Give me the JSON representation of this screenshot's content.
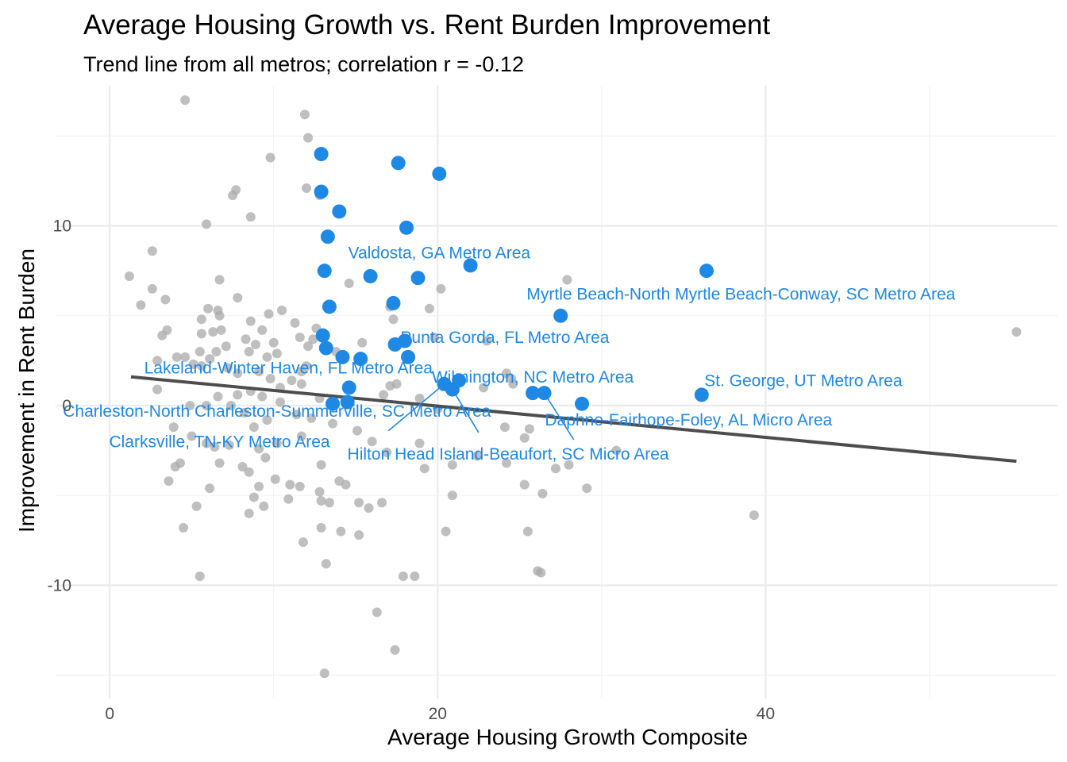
{
  "chart_data": {
    "type": "scatter",
    "title": "Average Housing Growth vs. Rent Burden Improvement",
    "subtitle": "Trend line from all metros; correlation r = -0.12",
    "xlabel": "Average Housing Growth Composite",
    "ylabel": "Improvement in Rent Burden",
    "xlim": [
      -3.3,
      57.8
    ],
    "ylim": [
      -16.3,
      17.8
    ],
    "x_ticks": [
      0,
      20,
      40
    ],
    "y_ticks": [
      -10,
      0,
      10
    ],
    "x_tick_labels": [
      "0",
      "20",
      "40"
    ],
    "y_tick_labels": [
      "-10",
      "0",
      "10"
    ],
    "grid": true,
    "colors": {
      "background_points": "#a9a9a9",
      "highlight_points": "#1e88e5",
      "trend_line": "#4d4d4d"
    },
    "trend_line": {
      "x": [
        1.3,
        55.3
      ],
      "y": [
        1.6,
        -3.1
      ]
    },
    "highlighted": [
      {
        "x": 12.9,
        "y": 14.0
      },
      {
        "x": 17.6,
        "y": 13.5
      },
      {
        "x": 20.1,
        "y": 12.9
      },
      {
        "x": 12.9,
        "y": 11.9
      },
      {
        "x": 14.0,
        "y": 10.8
      },
      {
        "x": 18.1,
        "y": 9.9
      },
      {
        "x": 13.3,
        "y": 9.4
      },
      {
        "x": 22.0,
        "y": 7.8
      },
      {
        "x": 13.1,
        "y": 7.5
      },
      {
        "x": 15.9,
        "y": 7.2
      },
      {
        "x": 18.8,
        "y": 7.1
      },
      {
        "x": 36.4,
        "y": 7.5
      },
      {
        "x": 13.4,
        "y": 5.5
      },
      {
        "x": 17.3,
        "y": 5.7
      },
      {
        "x": 27.5,
        "y": 5.0
      },
      {
        "x": 13.0,
        "y": 3.9
      },
      {
        "x": 13.2,
        "y": 3.2
      },
      {
        "x": 14.2,
        "y": 2.7
      },
      {
        "x": 15.3,
        "y": 2.6
      },
      {
        "x": 17.4,
        "y": 3.4
      },
      {
        "x": 18.0,
        "y": 3.6
      },
      {
        "x": 18.2,
        "y": 2.7
      },
      {
        "x": 14.6,
        "y": 1.0
      },
      {
        "x": 20.4,
        "y": 1.2
      },
      {
        "x": 21.3,
        "y": 1.4
      },
      {
        "x": 20.9,
        "y": 0.9
      },
      {
        "x": 25.8,
        "y": 0.7
      },
      {
        "x": 26.5,
        "y": 0.7
      },
      {
        "x": 28.8,
        "y": 0.1
      },
      {
        "x": 36.1,
        "y": 0.6
      },
      {
        "x": 13.6,
        "y": 0.1
      },
      {
        "x": 14.5,
        "y": 0.2
      }
    ],
    "labels": [
      {
        "text": "Valdosta, GA Metro Area",
        "x": 20.1,
        "y": 8.5
      },
      {
        "text": "Myrtle Beach-North Myrtle Beach-Conway, SC Metro Area",
        "x": 38.5,
        "y": 6.2
      },
      {
        "text": "Punta Gorda, FL Metro Area",
        "x": 24.1,
        "y": 3.8
      },
      {
        "text": "Lakeland-Winter Haven, FL Metro Area",
        "x": 10.9,
        "y": 2.1
      },
      {
        "text": "Wilmington, NC Metro Area",
        "x": 25.8,
        "y": 1.6
      },
      {
        "text": "St. George, UT Metro Area",
        "x": 42.3,
        "y": 1.4
      },
      {
        "text": "Charleston-North Charleston-Summerville, SC Metro Area",
        "x": 10.2,
        "y": -0.3
      },
      {
        "text": "Daphne-Fairhope-Foley, AL Micro Area",
        "x": 35.3,
        "y": -0.8
      },
      {
        "text": "Clarksville, TN-KY Metro Area",
        "x": 6.7,
        "y": -2.0
      },
      {
        "text": "Hilton Head Island-Beaufort, SC Micro Area",
        "x": 24.3,
        "y": -2.7
      }
    ],
    "leaders": [
      {
        "x1": 22.5,
        "y1": -1.5,
        "x2": 20.9,
        "y2": 0.9
      },
      {
        "x1": 17.0,
        "y1": -1.4,
        "x2": 20.4,
        "y2": 1.2
      },
      {
        "x1": 28.3,
        "y1": -1.9,
        "x2": 26.5,
        "y2": 0.7
      }
    ],
    "background": [
      {
        "x": 4.6,
        "y": 17.0
      },
      {
        "x": 11.9,
        "y": 16.2
      },
      {
        "x": 12.1,
        "y": 14.9
      },
      {
        "x": 9.8,
        "y": 13.8
      },
      {
        "x": 12.0,
        "y": 12.1
      },
      {
        "x": 7.7,
        "y": 12.0
      },
      {
        "x": 7.5,
        "y": 11.7
      },
      {
        "x": 12.8,
        "y": 11.7
      },
      {
        "x": 8.6,
        "y": 10.5
      },
      {
        "x": 5.9,
        "y": 10.1
      },
      {
        "x": 2.6,
        "y": 8.6
      },
      {
        "x": 1.2,
        "y": 7.2
      },
      {
        "x": 6.7,
        "y": 7.0
      },
      {
        "x": 2.6,
        "y": 6.5
      },
      {
        "x": 3.4,
        "y": 5.9
      },
      {
        "x": 7.8,
        "y": 6.0
      },
      {
        "x": 1.9,
        "y": 5.6
      },
      {
        "x": 6.0,
        "y": 5.4
      },
      {
        "x": 6.6,
        "y": 5.3
      },
      {
        "x": 9.7,
        "y": 5.1
      },
      {
        "x": 10.5,
        "y": 5.3
      },
      {
        "x": 5.6,
        "y": 4.8
      },
      {
        "x": 6.7,
        "y": 5.0
      },
      {
        "x": 8.6,
        "y": 4.7
      },
      {
        "x": 11.3,
        "y": 4.6
      },
      {
        "x": 12.6,
        "y": 4.3
      },
      {
        "x": 3.5,
        "y": 4.2
      },
      {
        "x": 3.2,
        "y": 3.9
      },
      {
        "x": 5.6,
        "y": 4.0
      },
      {
        "x": 6.3,
        "y": 4.1
      },
      {
        "x": 6.8,
        "y": 4.2
      },
      {
        "x": 9.3,
        "y": 4.2
      },
      {
        "x": 11.6,
        "y": 3.8
      },
      {
        "x": 12.4,
        "y": 3.7
      },
      {
        "x": 7.1,
        "y": 3.3
      },
      {
        "x": 8.3,
        "y": 3.7
      },
      {
        "x": 10.0,
        "y": 3.5
      },
      {
        "x": 6.5,
        "y": 3.0
      },
      {
        "x": 4.1,
        "y": 2.7
      },
      {
        "x": 4.6,
        "y": 2.7
      },
      {
        "x": 5.5,
        "y": 3.0
      },
      {
        "x": 2.9,
        "y": 2.5
      },
      {
        "x": 6.1,
        "y": 2.6
      },
      {
        "x": 8.5,
        "y": 3.0
      },
      {
        "x": 8.9,
        "y": 3.4
      },
      {
        "x": 9.6,
        "y": 2.7
      },
      {
        "x": 10.2,
        "y": 2.9
      },
      {
        "x": 12.1,
        "y": 3.3
      },
      {
        "x": 13.8,
        "y": 3.0
      },
      {
        "x": 15.4,
        "y": 3.5
      },
      {
        "x": 14.6,
        "y": 6.8
      },
      {
        "x": 17.3,
        "y": 4.8
      },
      {
        "x": 17.1,
        "y": 5.5
      },
      {
        "x": 19.5,
        "y": 5.4
      },
      {
        "x": 20.2,
        "y": 6.5
      },
      {
        "x": 27.9,
        "y": 7.0
      },
      {
        "x": 23.0,
        "y": 3.6
      },
      {
        "x": 19.8,
        "y": 3.8
      },
      {
        "x": 5.1,
        "y": 2.3
      },
      {
        "x": 5.6,
        "y": 2.2
      },
      {
        "x": 7.2,
        "y": 2.1
      },
      {
        "x": 7.8,
        "y": 1.8
      },
      {
        "x": 9.1,
        "y": 1.9
      },
      {
        "x": 11.7,
        "y": 1.9
      },
      {
        "x": 12.0,
        "y": 2.2
      },
      {
        "x": 11.1,
        "y": 1.4
      },
      {
        "x": 11.7,
        "y": 1.2
      },
      {
        "x": 10.4,
        "y": 1.0
      },
      {
        "x": 9.8,
        "y": 1.5
      },
      {
        "x": 2.9,
        "y": 0.9
      },
      {
        "x": 7.8,
        "y": 0.6
      },
      {
        "x": 8.6,
        "y": 0.8
      },
      {
        "x": 9.3,
        "y": 0.5
      },
      {
        "x": 10.4,
        "y": 0.2
      },
      {
        "x": 12.8,
        "y": 0.4
      },
      {
        "x": 4.9,
        "y": 0.0
      },
      {
        "x": 5.9,
        "y": 0.0
      },
      {
        "x": 6.6,
        "y": 0.5
      },
      {
        "x": 7.4,
        "y": 0.0
      },
      {
        "x": 8.2,
        "y": -0.4
      },
      {
        "x": 9.6,
        "y": -0.8
      },
      {
        "x": 11.4,
        "y": -0.5
      },
      {
        "x": 12.3,
        "y": -0.7
      },
      {
        "x": 13.6,
        "y": -1.0
      },
      {
        "x": 15.1,
        "y": -1.4
      },
      {
        "x": 3.9,
        "y": -1.2
      },
      {
        "x": 5.0,
        "y": -1.7
      },
      {
        "x": 5.9,
        "y": -2.1
      },
      {
        "x": 6.4,
        "y": -2.3
      },
      {
        "x": 7.3,
        "y": -2.2
      },
      {
        "x": 8.8,
        "y": -1.2
      },
      {
        "x": 9.1,
        "y": -2.4
      },
      {
        "x": 10.2,
        "y": -2.1
      },
      {
        "x": 11.7,
        "y": -1.7
      },
      {
        "x": 16.0,
        "y": -2.0
      },
      {
        "x": 16.9,
        "y": -2.6
      },
      {
        "x": 4.3,
        "y": -3.2
      },
      {
        "x": 4.0,
        "y": -3.4
      },
      {
        "x": 6.7,
        "y": -3.2
      },
      {
        "x": 8.1,
        "y": -3.4
      },
      {
        "x": 8.5,
        "y": -3.7
      },
      {
        "x": 9.5,
        "y": -2.9
      },
      {
        "x": 12.9,
        "y": -3.3
      },
      {
        "x": 3.6,
        "y": -4.2
      },
      {
        "x": 6.1,
        "y": -4.6
      },
      {
        "x": 9.1,
        "y": -4.5
      },
      {
        "x": 10.1,
        "y": -4.1
      },
      {
        "x": 11.0,
        "y": -4.4
      },
      {
        "x": 11.6,
        "y": -4.5
      },
      {
        "x": 12.8,
        "y": -4.8
      },
      {
        "x": 14.0,
        "y": -4.2
      },
      {
        "x": 14.4,
        "y": -4.4
      },
      {
        "x": 5.3,
        "y": -5.6
      },
      {
        "x": 8.8,
        "y": -5.1
      },
      {
        "x": 9.4,
        "y": -5.6
      },
      {
        "x": 10.9,
        "y": -5.2
      },
      {
        "x": 12.9,
        "y": -5.3
      },
      {
        "x": 13.4,
        "y": -5.4
      },
      {
        "x": 15.2,
        "y": -5.4
      },
      {
        "x": 15.8,
        "y": -5.7
      },
      {
        "x": 16.6,
        "y": -5.4
      },
      {
        "x": 8.5,
        "y": -6.0
      },
      {
        "x": 4.5,
        "y": -6.8
      },
      {
        "x": 12.9,
        "y": -6.8
      },
      {
        "x": 14.1,
        "y": -7.0
      },
      {
        "x": 15.2,
        "y": -7.2
      },
      {
        "x": 11.8,
        "y": -7.6
      },
      {
        "x": 13.2,
        "y": -8.8
      },
      {
        "x": 5.5,
        "y": -9.5
      },
      {
        "x": 16.3,
        "y": -11.5
      },
      {
        "x": 17.4,
        "y": -13.6
      },
      {
        "x": 13.1,
        "y": -14.9
      },
      {
        "x": 17.9,
        "y": -9.5
      },
      {
        "x": 18.6,
        "y": -9.5
      },
      {
        "x": 18.9,
        "y": -2.1
      },
      {
        "x": 19.2,
        "y": -3.5
      },
      {
        "x": 20.5,
        "y": -7.0
      },
      {
        "x": 20.9,
        "y": -5.0
      },
      {
        "x": 20.9,
        "y": -3.3
      },
      {
        "x": 22.4,
        "y": -2.8
      },
      {
        "x": 24.1,
        "y": -1.2
      },
      {
        "x": 24.2,
        "y": -3.2
      },
      {
        "x": 25.3,
        "y": -1.8
      },
      {
        "x": 25.3,
        "y": -4.4
      },
      {
        "x": 25.5,
        "y": -7.0
      },
      {
        "x": 25.6,
        "y": -1.3
      },
      {
        "x": 26.1,
        "y": -9.2
      },
      {
        "x": 26.3,
        "y": -9.3
      },
      {
        "x": 26.4,
        "y": -4.9
      },
      {
        "x": 27.2,
        "y": -3.5
      },
      {
        "x": 28.0,
        "y": -3.3
      },
      {
        "x": 29.1,
        "y": -4.6
      },
      {
        "x": 30.9,
        "y": -2.5
      },
      {
        "x": 39.3,
        "y": -6.1
      },
      {
        "x": 55.3,
        "y": 4.1
      },
      {
        "x": 24.2,
        "y": 1.8
      },
      {
        "x": 24.5,
        "y": 1.5
      },
      {
        "x": 24.6,
        "y": 1.2
      },
      {
        "x": 22.8,
        "y": 1.0
      },
      {
        "x": 17.1,
        "y": 1.1
      },
      {
        "x": 17.5,
        "y": 1.2
      },
      {
        "x": 18.9,
        "y": 0.4
      },
      {
        "x": 20.0,
        "y": -0.2
      },
      {
        "x": 16.7,
        "y": 0.6
      }
    ]
  }
}
